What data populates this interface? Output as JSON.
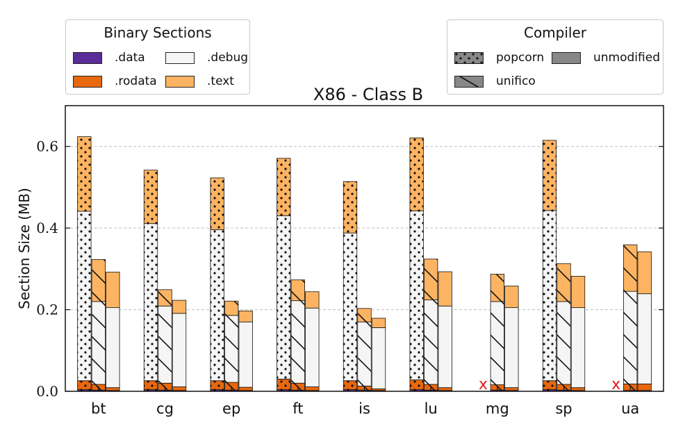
{
  "chart_data": {
    "type": "bar",
    "title": "X86 - Class B",
    "xlabel": "",
    "ylabel": "Section Size (MB)",
    "ylim": [
      0,
      0.7
    ],
    "yticks": [
      "0.0",
      "0.2",
      "0.4",
      "0.6"
    ],
    "grid": "horizontal dashed",
    "categories": [
      "bt",
      "cg",
      "ep",
      "ft",
      "is",
      "lu",
      "mg",
      "sp",
      "ua"
    ],
    "compilers": [
      "popcorn",
      "unifico",
      "unmodified"
    ],
    "sections": [
      ".data",
      ".rodata",
      ".debug",
      ".text"
    ],
    "section_colors": {
      ".data": "#5b2c99",
      ".rodata": "#e8680e",
      ".debug": "#f5f5f5",
      ".text": "#fdb462"
    },
    "missing_marker": "x",
    "values": {
      "popcorn": {
        "bt": [
          0.004,
          0.022,
          0.415,
          0.183
        ],
        "cg": [
          0.004,
          0.022,
          0.385,
          0.131
        ],
        "ep": [
          0.004,
          0.022,
          0.37,
          0.127
        ],
        "ft": [
          0.004,
          0.026,
          0.4,
          0.141
        ],
        "is": [
          0.004,
          0.022,
          0.362,
          0.126
        ],
        "lu": [
          0.004,
          0.024,
          0.414,
          0.179
        ],
        "mg": null,
        "sp": [
          0.004,
          0.022,
          0.417,
          0.172
        ],
        "ua": null
      },
      "unifico": {
        "bt": [
          0.003,
          0.014,
          0.203,
          0.103
        ],
        "cg": [
          0.003,
          0.017,
          0.189,
          0.04
        ],
        "ep": [
          0.003,
          0.019,
          0.164,
          0.035
        ],
        "ft": [
          0.003,
          0.017,
          0.202,
          0.051
        ],
        "is": [
          0.003,
          0.01,
          0.157,
          0.033
        ],
        "lu": [
          0.003,
          0.014,
          0.207,
          0.1
        ],
        "mg": [
          0.003,
          0.013,
          0.204,
          0.067
        ],
        "sp": [
          0.003,
          0.014,
          0.203,
          0.093
        ],
        "ua": [
          0.002,
          0.016,
          0.227,
          0.114
        ]
      },
      "unmodified": {
        "bt": [
          0.002,
          0.007,
          0.196,
          0.087
        ],
        "cg": [
          0.002,
          0.009,
          0.18,
          0.032
        ],
        "ep": [
          0.002,
          0.008,
          0.16,
          0.027
        ],
        "ft": [
          0.002,
          0.009,
          0.193,
          0.04
        ],
        "is": [
          0.002,
          0.004,
          0.15,
          0.023
        ],
        "lu": [
          0.002,
          0.007,
          0.2,
          0.084
        ],
        "mg": [
          0.002,
          0.007,
          0.196,
          0.053
        ],
        "sp": [
          0.002,
          0.007,
          0.196,
          0.077
        ],
        "ua": [
          0.002,
          0.016,
          0.221,
          0.103
        ]
      }
    }
  },
  "legend_sections": {
    "title": "Binary Sections",
    "items": [
      {
        "label": ".data",
        "color": "#5b2c99"
      },
      {
        "label": ".debug",
        "color": "#f5f5f5"
      },
      {
        "label": ".rodata",
        "color": "#e8680e"
      },
      {
        "label": ".text",
        "color": "#fdb462"
      }
    ]
  },
  "legend_compiler": {
    "title": "Compiler",
    "items": [
      {
        "label": "popcorn",
        "hatch": "dots"
      },
      {
        "label": "unmodified",
        "hatch": "none"
      },
      {
        "label": "unifico",
        "hatch": "diag"
      }
    ]
  }
}
